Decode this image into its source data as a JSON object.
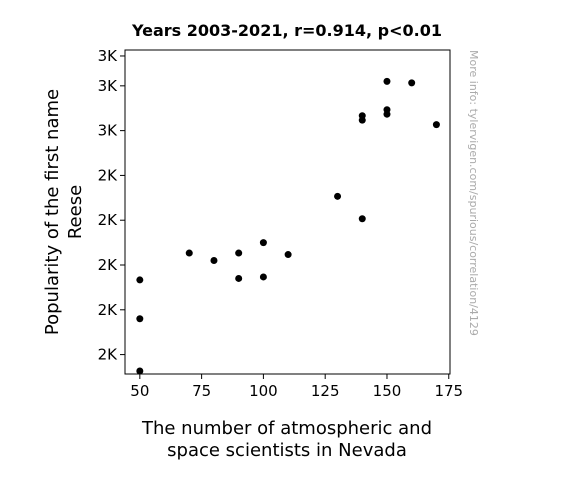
{
  "chart_data": {
    "type": "scatter",
    "title": "Years 2003-2021, r=0.914, p<0.01",
    "xlabel": [
      "The number of atmospheric and",
      "space scientists in Nevada"
    ],
    "ylabel": [
      "Popularity of the first name",
      "Reese"
    ],
    "side_note": "More info: tylervigen.com/spurious/correlation/4129",
    "xlim": [
      44,
      175.5
    ],
    "ylim": [
      1935,
      3020
    ],
    "x_ticks": [
      {
        "value": 50,
        "label": "50"
      },
      {
        "value": 75,
        "label": "75"
      },
      {
        "value": 100,
        "label": "100"
      },
      {
        "value": 125,
        "label": "125"
      },
      {
        "value": 150,
        "label": "150"
      },
      {
        "value": 175,
        "label": "175"
      }
    ],
    "y_ticks": [
      {
        "value": 2000,
        "label": "2K"
      },
      {
        "value": 2150,
        "label": "2K"
      },
      {
        "value": 2300,
        "label": "2K"
      },
      {
        "value": 2450,
        "label": "2K"
      },
      {
        "value": 2600,
        "label": "2K"
      },
      {
        "value": 2750,
        "label": "3K"
      },
      {
        "value": 2900,
        "label": "3K"
      },
      {
        "value": 3000,
        "label": "3K"
      }
    ],
    "grid": false,
    "marker_color": "#000000",
    "points": [
      {
        "x": 50,
        "y": 1945
      },
      {
        "x": 50,
        "y": 2120
      },
      {
        "x": 50,
        "y": 2250
      },
      {
        "x": 70,
        "y": 2340
      },
      {
        "x": 80,
        "y": 2315
      },
      {
        "x": 90,
        "y": 2255
      },
      {
        "x": 90,
        "y": 2340
      },
      {
        "x": 100,
        "y": 2260
      },
      {
        "x": 100,
        "y": 2375
      },
      {
        "x": 110,
        "y": 2335
      },
      {
        "x": 130,
        "y": 2530
      },
      {
        "x": 140,
        "y": 2455
      },
      {
        "x": 140,
        "y": 2785
      },
      {
        "x": 140,
        "y": 2800
      },
      {
        "x": 150,
        "y": 2805
      },
      {
        "x": 150,
        "y": 2820
      },
      {
        "x": 150,
        "y": 2915
      },
      {
        "x": 160,
        "y": 2910
      },
      {
        "x": 170,
        "y": 2770
      }
    ]
  }
}
